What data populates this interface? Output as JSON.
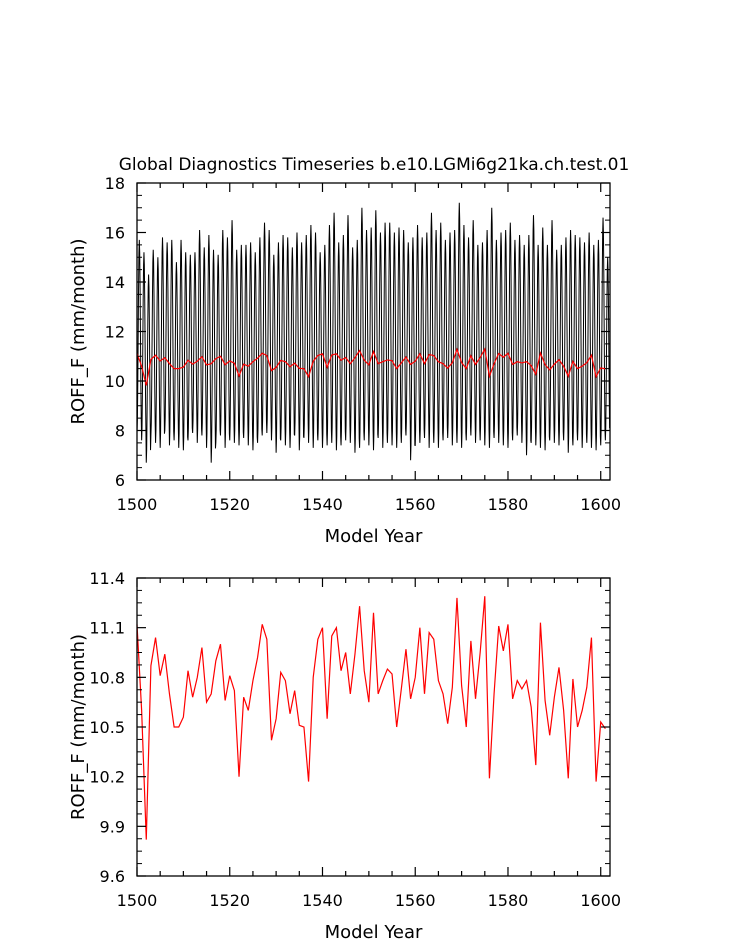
{
  "title": "Global Diagnostics Timeseries b.e10.LGMi6g21ka.ch.test.01",
  "chart_data": [
    {
      "type": "line",
      "xlabel": "Model Year",
      "ylabel": "ROFF_F (mm/month)",
      "xlim": [
        1500,
        1602
      ],
      "ylim": [
        6,
        18
      ],
      "xticks": [
        "1500",
        "1520",
        "1540",
        "1560",
        "1580",
        "1600"
      ],
      "yticks": [
        "6",
        "8",
        "10",
        "12",
        "14",
        "16",
        "18"
      ],
      "series": [
        {
          "color": "#000000",
          "kind": "monthly",
          "annual_peak": [
            15.7,
            15.2,
            14.3,
            15.3,
            15.0,
            15.8,
            15.6,
            15.7,
            14.8,
            15.7,
            15.2,
            15.1,
            15.2,
            16.1,
            15.4,
            15.9,
            15.3,
            15.1,
            16.1,
            15.8,
            16.5,
            15.3,
            15.5,
            15.5,
            15.6,
            15.2,
            15.8,
            16.4,
            16.1,
            15.1,
            15.6,
            15.9,
            15.8,
            15.4,
            16.0,
            15.6,
            15.9,
            16.3,
            16.0,
            15.2,
            15.5,
            16.3,
            16.8,
            15.6,
            15.9,
            16.7,
            15.4,
            15.7,
            17.0,
            16.1,
            16.2,
            16.9,
            16.0,
            16.4,
            16.4,
            16.0,
            16.2,
            16.1,
            15.6,
            15.8,
            16.3,
            15.8,
            16.0,
            16.8,
            16.1,
            16.4,
            15.7,
            16.0,
            16.1,
            17.2,
            16.3,
            15.8,
            16.5,
            15.5,
            15.6,
            16.1,
            17.0,
            15.7,
            16.0,
            16.1,
            16.4,
            15.7,
            15.9,
            15.5,
            15.9,
            16.7,
            15.5,
            16.2,
            15.5,
            16.5,
            15.3,
            15.5,
            15.8,
            16.1,
            15.9,
            15.8,
            15.6,
            16.0,
            15.5,
            15.7,
            16.6,
            15.0
          ],
          "annual_trough": [
            7.9,
            7.6,
            6.7,
            7.8,
            7.5,
            7.3,
            8.0,
            7.4,
            7.6,
            7.3,
            7.2,
            7.6,
            7.9,
            7.5,
            7.8,
            7.3,
            6.7,
            7.5,
            7.8,
            7.3,
            7.6,
            7.5,
            7.4,
            7.7,
            7.4,
            7.2,
            7.5,
            7.8,
            7.9,
            7.6,
            7.1,
            7.6,
            7.4,
            7.3,
            7.8,
            7.2,
            7.7,
            7.5,
            7.3,
            7.6,
            7.3,
            7.4,
            7.5,
            7.2,
            7.4,
            7.6,
            7.5,
            7.1,
            7.3,
            7.6,
            7.4,
            7.2,
            7.7,
            7.3,
            7.5,
            7.4,
            7.3,
            7.5,
            7.8,
            6.8,
            7.4,
            7.5,
            7.7,
            7.3,
            7.5,
            7.3,
            7.6,
            7.7,
            7.4,
            7.5,
            7.3,
            7.6,
            7.8,
            7.5,
            7.6,
            7.4,
            7.3,
            7.7,
            7.5,
            7.4,
            7.3,
            7.6,
            7.8,
            7.5,
            7.0,
            7.5,
            7.4,
            7.3,
            7.2,
            7.6,
            7.5,
            7.4,
            7.6,
            7.1,
            7.4,
            7.6,
            7.3,
            7.5,
            7.3,
            7.2,
            7.4,
            7.6
          ]
        },
        {
          "color": "#ff0000",
          "kind": "annual",
          "values": [
            11.12,
            10.6,
            9.82,
            10.87,
            11.04,
            10.81,
            10.94,
            10.7,
            10.5,
            10.5,
            10.56,
            10.84,
            10.68,
            10.8,
            10.98,
            10.65,
            10.7,
            10.9,
            11.0,
            10.66,
            10.81,
            10.72,
            10.2,
            10.68,
            10.6,
            10.78,
            10.92,
            11.12,
            11.03,
            10.42,
            10.55,
            10.83,
            10.78,
            10.58,
            10.72,
            10.51,
            10.5,
            10.17,
            10.8,
            11.03,
            11.1,
            10.55,
            11.05,
            11.1,
            10.84,
            10.95,
            10.7,
            10.94,
            11.23,
            10.84,
            10.65,
            11.19,
            10.7,
            10.78,
            10.85,
            10.82,
            10.5,
            10.73,
            10.97,
            10.67,
            10.8,
            11.1,
            10.7,
            11.07,
            11.03,
            10.78,
            10.7,
            10.52,
            10.74,
            11.28,
            10.75,
            10.5,
            11.02,
            10.67,
            10.95,
            11.29,
            10.19,
            10.7,
            11.11,
            10.96,
            11.12,
            10.67,
            10.78,
            10.73,
            10.78,
            10.62,
            10.27,
            11.13,
            10.66,
            10.45,
            10.68,
            10.86,
            10.6,
            10.19,
            10.79,
            10.5,
            10.6,
            10.74,
            11.04,
            10.17,
            10.53,
            10.49
          ]
        }
      ]
    },
    {
      "type": "line",
      "xlabel": "Model Year",
      "ylabel": "ROFF_F (mm/month)",
      "xlim": [
        1500,
        1602
      ],
      "ylim": [
        9.6,
        11.4
      ],
      "xticks": [
        "1500",
        "1520",
        "1540",
        "1560",
        "1580",
        "1600"
      ],
      "yticks": [
        "9.6",
        "9.9",
        "10.2",
        "10.5",
        "10.8",
        "11.1",
        "11.4"
      ],
      "series": [
        {
          "color": "#ff0000",
          "kind": "annual",
          "values": [
            11.12,
            10.6,
            9.82,
            10.87,
            11.04,
            10.81,
            10.94,
            10.7,
            10.5,
            10.5,
            10.56,
            10.84,
            10.68,
            10.8,
            10.98,
            10.65,
            10.7,
            10.9,
            11.0,
            10.66,
            10.81,
            10.72,
            10.2,
            10.68,
            10.6,
            10.78,
            10.92,
            11.12,
            11.03,
            10.42,
            10.55,
            10.83,
            10.78,
            10.58,
            10.72,
            10.51,
            10.5,
            10.17,
            10.8,
            11.03,
            11.1,
            10.55,
            11.05,
            11.1,
            10.84,
            10.95,
            10.7,
            10.94,
            11.23,
            10.84,
            10.65,
            11.19,
            10.7,
            10.78,
            10.85,
            10.82,
            10.5,
            10.73,
            10.97,
            10.67,
            10.8,
            11.1,
            10.7,
            11.07,
            11.03,
            10.78,
            10.7,
            10.52,
            10.74,
            11.28,
            10.75,
            10.5,
            11.02,
            10.67,
            10.95,
            11.29,
            10.19,
            10.7,
            11.11,
            10.96,
            11.12,
            10.67,
            10.78,
            10.73,
            10.78,
            10.62,
            10.27,
            11.13,
            10.66,
            10.45,
            10.68,
            10.86,
            10.6,
            10.19,
            10.79,
            10.5,
            10.6,
            10.74,
            11.04,
            10.17,
            10.53,
            10.49
          ]
        }
      ]
    }
  ]
}
